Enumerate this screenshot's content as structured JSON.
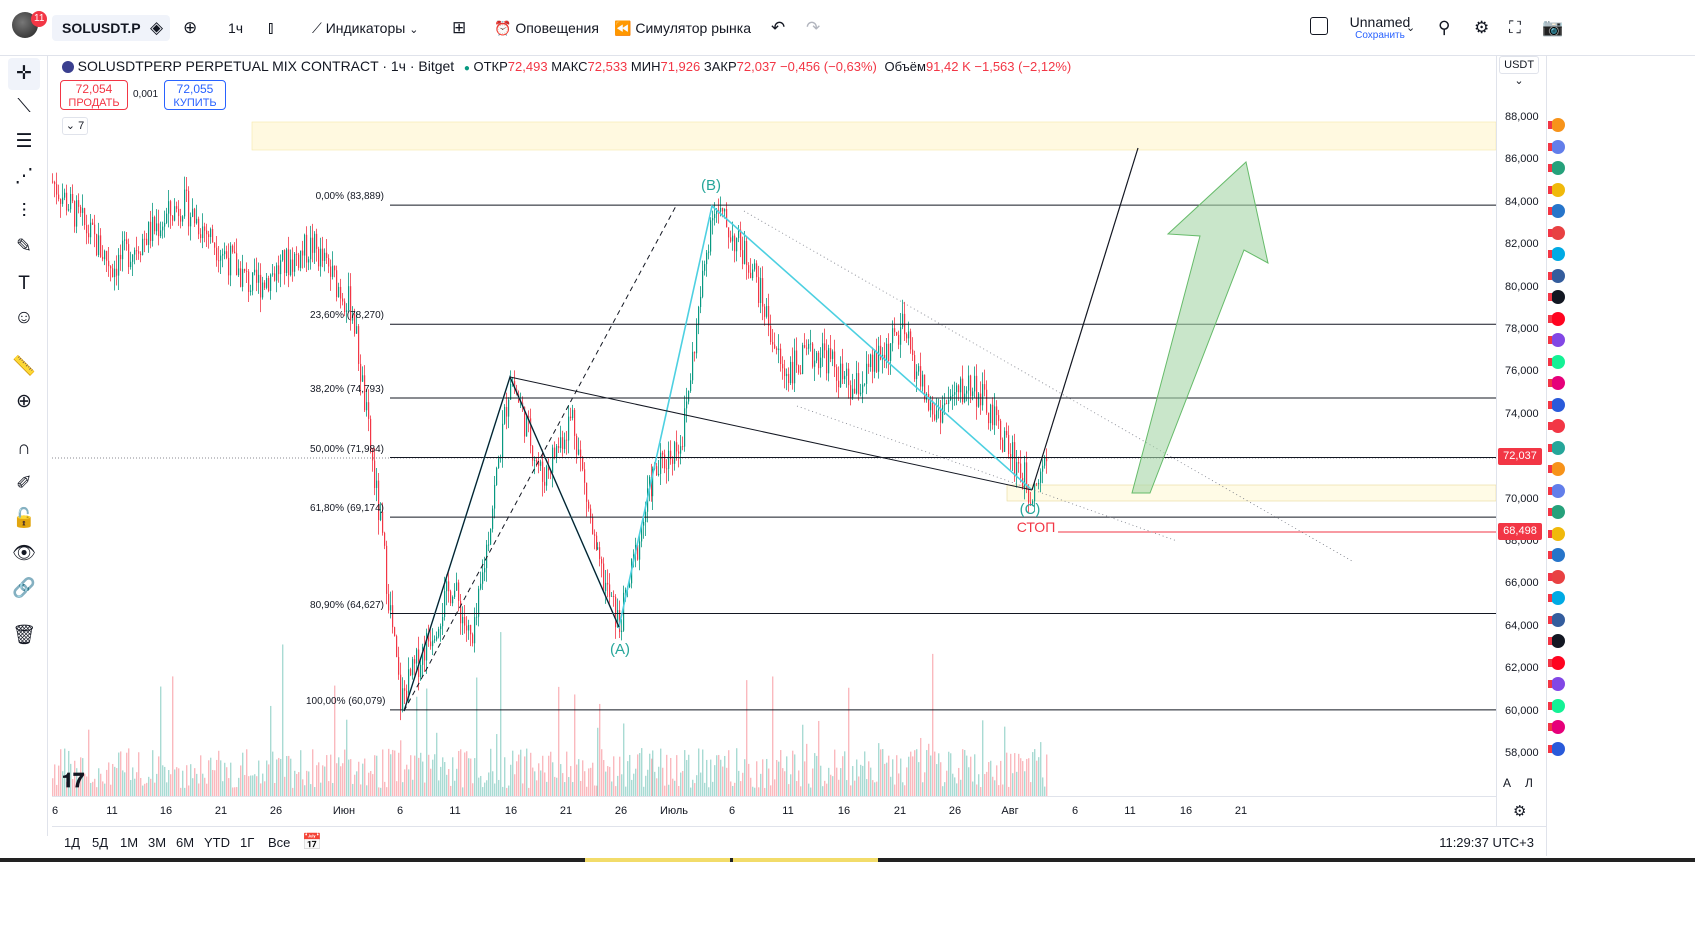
{
  "header": {
    "notification_count": "11",
    "symbol": "SOLUSDT.P",
    "interval": "1ч",
    "indicators_label": "Индикаторы",
    "alerts_label": "Оповещения",
    "replay_label": "Симулятор рынка",
    "layout_name": "Unnamed",
    "save_label": "Сохранить"
  },
  "legend": {
    "title": "SOLUSDTPERP PERPETUAL MIX CONTRACT · 1ч · Bitget",
    "open_label": "ОТКР",
    "open": "72,493",
    "high_label": "МАКС",
    "high": "72,533",
    "low_label": "МИН",
    "low": "71,926",
    "close_label": "ЗАКР",
    "close": "72,037",
    "change": "−0,456 (−0,63%)",
    "volume_label": "Объём",
    "volume": "91,42 K",
    "volume_change": "−1,563 (−2,12%)"
  },
  "order": {
    "sell_price": "72,054",
    "sell_label": "ПРОДАТЬ",
    "spread": "0,001",
    "buy_price": "72,055",
    "buy_label": "КУПИТЬ",
    "indicators_count": "7"
  },
  "price_axis": {
    "currency": "USDT",
    "labels": [
      "88,000",
      "86,000",
      "84,000",
      "82,000",
      "80,000",
      "78,000",
      "76,000",
      "74,000",
      "72,000",
      "70,000",
      "68,000",
      "66,000",
      "64,000",
      "62,000",
      "60,000",
      "58,000"
    ],
    "last_price": "72,037",
    "stop_price": "68,498",
    "auto_label": "А",
    "log_label": "Л"
  },
  "fib_levels": [
    {
      "label": "0,00% (83,889)",
      "price": 83.889
    },
    {
      "label": "23,60% (78,270)",
      "price": 78.27
    },
    {
      "label": "38,20% (74,793)",
      "price": 74.793
    },
    {
      "label": "50,00% (71,984)",
      "price": 71.984
    },
    {
      "label": "61,80% (69,174)",
      "price": 69.174
    },
    {
      "label": "80,90% (64,627)",
      "price": 64.627
    },
    {
      "label": "100,00% (60,079)",
      "price": 60.079
    }
  ],
  "annotations": {
    "wave_a": "(A)",
    "wave_b": "(B)",
    "wave_c": "(C)",
    "stop": "СТОП"
  },
  "time_axis": [
    "6",
    "11",
    "16",
    "21",
    "26",
    "Июн",
    "6",
    "11",
    "16",
    "21",
    "26",
    "Июль",
    "6",
    "11",
    "16",
    "21",
    "26",
    "Авг",
    "6",
    "11",
    "16",
    "21"
  ],
  "ranges": [
    "1Д",
    "5Д",
    "1М",
    "3М",
    "6М",
    "YTD",
    "1Г",
    "Все"
  ],
  "clock": "11:29:37 UTC+3",
  "colors": {
    "up": "#089981",
    "down": "#f23645",
    "wave": "#4dd0e1",
    "arrow": "#a5d6a7",
    "zone": "#fff9e0",
    "accent": "#2962ff"
  },
  "chart_data": {
    "type": "candlestick",
    "symbol": "SOLUSDTPERP",
    "timeframe": "1h",
    "ylim": [
      57,
      89
    ],
    "last_close": 72.037,
    "swing_points": [
      {
        "x": "May 5",
        "y": 85.0
      },
      {
        "x": "Jun 5",
        "y": 60.1
      },
      {
        "x": "Jun 16",
        "y": 75.9
      },
      {
        "x": "Jun 25",
        "y": 64.0
      },
      {
        "x": "Jul 4",
        "y": 83.9
      },
      {
        "x": "Aug 2",
        "y": 70.4
      }
    ]
  }
}
